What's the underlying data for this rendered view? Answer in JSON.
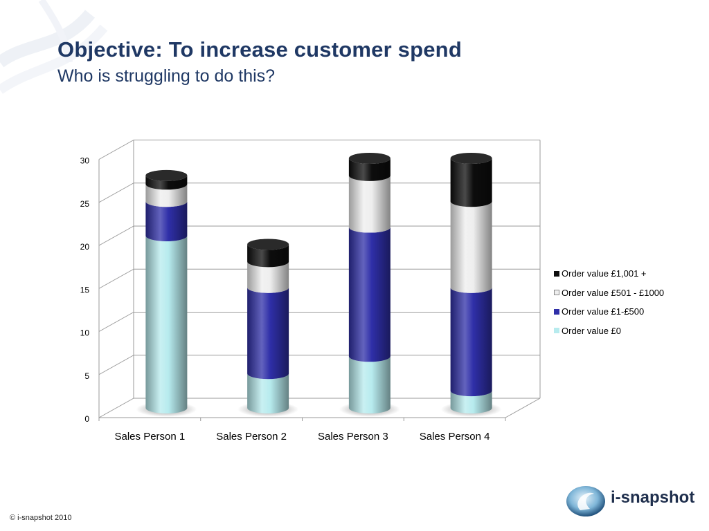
{
  "slide": {
    "title": "Objective: To increase customer spend",
    "subtitle": "Who is struggling to do this?",
    "copyright": "© i-snapshot 2010",
    "logo_text": "i-snapshot"
  },
  "colors": {
    "title": "#1f3864",
    "order_value_0": "#b7ebee",
    "order_value_1_500": "#2f2fa8",
    "order_value_501_1000": "#eeeeee",
    "order_value_1001_plus": "#0d0d0d"
  },
  "chart_data": {
    "type": "bar",
    "stacked": true,
    "style": "3d-cylinder",
    "categories": [
      "Sales Person 1",
      "Sales Person 2",
      "Sales Person 3",
      "Sales Person 4"
    ],
    "series": [
      {
        "name": "Order value £0",
        "color": "#b7ebee",
        "values": [
          20,
          4,
          6,
          2
        ]
      },
      {
        "name": "Order value £1-£500",
        "color": "#2f2fa8",
        "values": [
          4,
          10,
          15,
          12
        ]
      },
      {
        "name": "Order value £501 - £1000",
        "color": "#eeeeee",
        "values": [
          2,
          3,
          6,
          10
        ]
      },
      {
        "name": "Order value £1,001 +",
        "color": "#0d0d0d",
        "values": [
          1,
          2,
          2,
          5
        ]
      }
    ],
    "y_ticks": [
      "0",
      "5",
      "10",
      "15",
      "20",
      "25",
      "30"
    ],
    "ylim": [
      0,
      30
    ],
    "grid": true,
    "legend_position": "right",
    "legend_order": [
      "Order value £1,001 +",
      "Order value £501 - £1000",
      "Order value £1-£500",
      "Order value £0"
    ]
  }
}
